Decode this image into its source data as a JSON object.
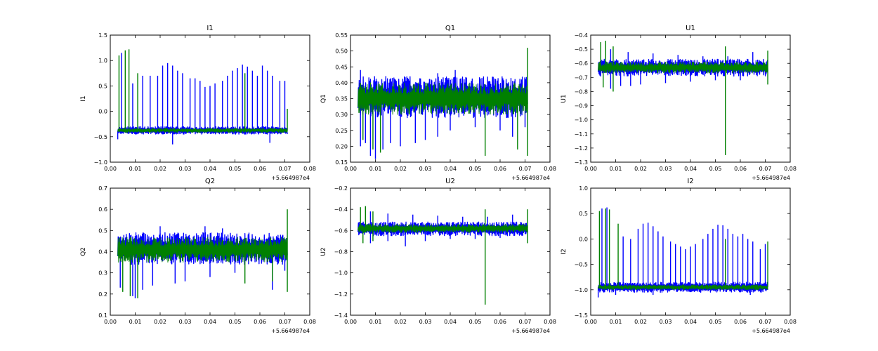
{
  "chart_data": [
    {
      "type": "line",
      "title": "I1",
      "ylabel": "I1",
      "xlabel": "",
      "xlim": [
        0.0,
        0.08
      ],
      "ylim": [
        -1.0,
        1.5
      ],
      "xticks": [
        "0.00",
        "0.01",
        "0.02",
        "0.03",
        "0.04",
        "0.05",
        "0.06",
        "0.07",
        "0.08"
      ],
      "yticks": [
        "−1.0",
        "−0.5",
        "0.0",
        "0.5",
        "1.0",
        "1.5"
      ],
      "x_offset_label": "+5.664987e4",
      "grid": false,
      "x_range_data": [
        0.003,
        0.071
      ],
      "series": [
        {
          "color": "#0000ff",
          "band": [
            -0.45,
            -0.3
          ],
          "baseline": -0.38,
          "spikes": [
            [
              0.0045,
              1.15
            ],
            [
              0.009,
              0.55
            ],
            [
              0.013,
              0.7
            ],
            [
              0.016,
              0.7
            ],
            [
              0.019,
              0.7
            ],
            [
              0.021,
              0.9
            ],
            [
              0.023,
              0.95
            ],
            [
              0.025,
              0.9
            ],
            [
              0.027,
              0.8
            ],
            [
              0.029,
              0.75
            ],
            [
              0.032,
              0.65
            ],
            [
              0.034,
              0.65
            ],
            [
              0.036,
              0.6
            ],
            [
              0.038,
              0.48
            ],
            [
              0.04,
              0.5
            ],
            [
              0.042,
              0.55
            ],
            [
              0.045,
              0.6
            ],
            [
              0.047,
              0.7
            ],
            [
              0.049,
              0.8
            ],
            [
              0.051,
              0.85
            ],
            [
              0.053,
              0.92
            ],
            [
              0.055,
              0.88
            ],
            [
              0.057,
              0.8
            ],
            [
              0.059,
              0.7
            ],
            [
              0.061,
              0.9
            ],
            [
              0.063,
              0.8
            ],
            [
              0.065,
              0.7
            ],
            [
              0.068,
              0.6
            ],
            [
              0.07,
              0.6
            ]
          ],
          "dips": [
            [
              0.003,
              -0.55
            ],
            [
              0.025,
              -0.65
            ],
            [
              0.064,
              -0.62
            ]
          ]
        },
        {
          "color": "#008000",
          "band": [
            -0.42,
            -0.33
          ],
          "baseline": -0.38,
          "spikes": [
            [
              0.0035,
              1.1
            ],
            [
              0.006,
              1.2
            ],
            [
              0.0075,
              1.22
            ],
            [
              0.011,
              0.75
            ],
            [
              0.054,
              0.75
            ],
            [
              0.071,
              0.05
            ]
          ],
          "dips": []
        }
      ]
    },
    {
      "type": "line",
      "title": "Q1",
      "ylabel": "Q1",
      "xlabel": "",
      "xlim": [
        0.0,
        0.08
      ],
      "ylim": [
        0.15,
        0.55
      ],
      "xticks": [
        "0.00",
        "0.01",
        "0.02",
        "0.03",
        "0.04",
        "0.05",
        "0.06",
        "0.07",
        "0.08"
      ],
      "yticks": [
        "0.15",
        "0.20",
        "0.25",
        "0.30",
        "0.35",
        "0.40",
        "0.45",
        "0.50",
        "0.55"
      ],
      "x_offset_label": "+5.664987e4",
      "grid": false,
      "x_range_data": [
        0.003,
        0.071
      ],
      "series": [
        {
          "color": "#0000ff",
          "band": [
            0.29,
            0.42
          ],
          "baseline": 0.36,
          "spikes": [
            [
              0.004,
              0.44
            ],
            [
              0.035,
              0.43
            ],
            [
              0.042,
              0.44
            ]
          ],
          "dips": [
            [
              0.004,
              0.2
            ],
            [
              0.006,
              0.21
            ],
            [
              0.008,
              0.17
            ],
            [
              0.01,
              0.16
            ],
            [
              0.013,
              0.19
            ],
            [
              0.016,
              0.21
            ],
            [
              0.02,
              0.2
            ],
            [
              0.026,
              0.21
            ],
            [
              0.03,
              0.22
            ],
            [
              0.035,
              0.23
            ],
            [
              0.04,
              0.25
            ],
            [
              0.05,
              0.26
            ],
            [
              0.06,
              0.25
            ],
            [
              0.065,
              0.23
            ],
            [
              0.07,
              0.26
            ]
          ]
        },
        {
          "color": "#008000",
          "band": [
            0.3,
            0.4
          ],
          "baseline": 0.35,
          "spikes": [
            [
              0.071,
              0.51
            ]
          ],
          "dips": [
            [
              0.005,
              0.22
            ],
            [
              0.009,
              0.19
            ],
            [
              0.012,
              0.18
            ],
            [
              0.054,
              0.17
            ],
            [
              0.067,
              0.19
            ],
            [
              0.071,
              0.17
            ]
          ]
        }
      ]
    },
    {
      "type": "line",
      "title": "U1",
      "ylabel": "U1",
      "xlabel": "",
      "xlim": [
        0.0,
        0.08
      ],
      "ylim": [
        -1.3,
        -0.4
      ],
      "xticks": [
        "0.00",
        "0.01",
        "0.02",
        "0.03",
        "0.04",
        "0.05",
        "0.06",
        "0.07",
        "0.08"
      ],
      "yticks": [
        "−1.3",
        "−1.2",
        "−1.1",
        "−1.0",
        "−0.9",
        "−0.8",
        "−0.7",
        "−0.6",
        "−0.5",
        "−0.4"
      ],
      "x_offset_label": "+5.664987e4",
      "grid": false,
      "x_range_data": [
        0.003,
        0.071
      ],
      "series": [
        {
          "color": "#0000ff",
          "band": [
            -0.69,
            -0.57
          ],
          "baseline": -0.63,
          "spikes": [
            [
              0.008,
              -0.5
            ],
            [
              0.015,
              -0.52
            ],
            [
              0.025,
              -0.53
            ],
            [
              0.035,
              -0.54
            ],
            [
              0.045,
              -0.55
            ],
            [
              0.055,
              -0.55
            ],
            [
              0.065,
              -0.52
            ]
          ],
          "dips": [
            [
              0.008,
              -0.78
            ],
            [
              0.012,
              -0.76
            ],
            [
              0.016,
              -0.76
            ],
            [
              0.02,
              -0.75
            ],
            [
              0.03,
              -0.74
            ],
            [
              0.04,
              -0.73
            ],
            [
              0.05,
              -0.72
            ],
            [
              0.06,
              -0.72
            ]
          ]
        },
        {
          "color": "#008000",
          "band": [
            -0.67,
            -0.59
          ],
          "baseline": -0.63,
          "spikes": [
            [
              0.004,
              -0.45
            ],
            [
              0.006,
              -0.44
            ],
            [
              0.009,
              -0.48
            ],
            [
              0.054,
              -0.48
            ],
            [
              0.071,
              -0.51
            ]
          ],
          "dips": [
            [
              0.005,
              -0.77
            ],
            [
              0.009,
              -0.8
            ],
            [
              0.054,
              -1.25
            ],
            [
              0.071,
              -0.75
            ]
          ]
        }
      ]
    },
    {
      "type": "line",
      "title": "Q2",
      "ylabel": "Q2",
      "xlabel": "",
      "xlim": [
        0.0,
        0.08
      ],
      "ylim": [
        0.1,
        0.7
      ],
      "xticks": [
        "0.00",
        "0.01",
        "0.02",
        "0.03",
        "0.04",
        "0.05",
        "0.06",
        "0.07",
        "0.08"
      ],
      "yticks": [
        "0.1",
        "0.2",
        "0.3",
        "0.4",
        "0.5",
        "0.6",
        "0.7"
      ],
      "x_offset_label": "+5.664987e4",
      "grid": false,
      "x_range_data": [
        0.003,
        0.071
      ],
      "series": [
        {
          "color": "#0000ff",
          "band": [
            0.34,
            0.49
          ],
          "baseline": 0.42,
          "spikes": [
            [
              0.02,
              0.52
            ],
            [
              0.038,
              0.52
            ],
            [
              0.045,
              0.51
            ]
          ],
          "dips": [
            [
              0.004,
              0.23
            ],
            [
              0.009,
              0.19
            ],
            [
              0.01,
              0.18
            ],
            [
              0.013,
              0.22
            ],
            [
              0.017,
              0.24
            ],
            [
              0.026,
              0.25
            ],
            [
              0.03,
              0.26
            ],
            [
              0.04,
              0.28
            ],
            [
              0.05,
              0.3
            ],
            [
              0.065,
              0.22
            ],
            [
              0.07,
              0.31
            ]
          ]
        },
        {
          "color": "#008000",
          "band": [
            0.35,
            0.47
          ],
          "baseline": 0.41,
          "spikes": [
            [
              0.071,
              0.6
            ]
          ],
          "dips": [
            [
              0.005,
              0.21
            ],
            [
              0.008,
              0.19
            ],
            [
              0.011,
              0.18
            ],
            [
              0.054,
              0.25
            ],
            [
              0.065,
              0.26
            ],
            [
              0.071,
              0.21
            ]
          ]
        }
      ]
    },
    {
      "type": "line",
      "title": "U2",
      "ylabel": "U2",
      "xlabel": "",
      "xlim": [
        0.0,
        0.08
      ],
      "ylim": [
        -1.4,
        -0.2
      ],
      "xticks": [
        "0.00",
        "0.01",
        "0.02",
        "0.03",
        "0.04",
        "0.05",
        "0.06",
        "0.07",
        "0.08"
      ],
      "yticks": [
        "−1.4",
        "−1.2",
        "−1.0",
        "−0.8",
        "−0.6",
        "−0.4",
        "−0.2"
      ],
      "x_offset_label": "+5.664987e4",
      "grid": false,
      "x_range_data": [
        0.003,
        0.071
      ],
      "series": [
        {
          "color": "#0000ff",
          "band": [
            -0.65,
            -0.52
          ],
          "baseline": -0.58,
          "spikes": [
            [
              0.008,
              -0.42
            ],
            [
              0.015,
              -0.44
            ],
            [
              0.025,
              -0.45
            ],
            [
              0.035,
              -0.46
            ],
            [
              0.045,
              -0.47
            ],
            [
              0.055,
              -0.47
            ],
            [
              0.065,
              -0.45
            ]
          ],
          "dips": [
            [
              0.008,
              -0.72
            ],
            [
              0.015,
              -0.7
            ],
            [
              0.022,
              -0.75
            ],
            [
              0.03,
              -0.7
            ],
            [
              0.04,
              -0.68
            ],
            [
              0.05,
              -0.68
            ],
            [
              0.06,
              -0.67
            ]
          ]
        },
        {
          "color": "#008000",
          "band": [
            -0.62,
            -0.54
          ],
          "baseline": -0.58,
          "spikes": [
            [
              0.004,
              -0.38
            ],
            [
              0.006,
              -0.37
            ],
            [
              0.009,
              -0.42
            ],
            [
              0.054,
              -0.4
            ],
            [
              0.071,
              -0.4
            ]
          ],
          "dips": [
            [
              0.005,
              -0.72
            ],
            [
              0.009,
              -0.7
            ],
            [
              0.054,
              -1.3
            ],
            [
              0.071,
              -0.72
            ]
          ]
        }
      ]
    },
    {
      "type": "line",
      "title": "I2",
      "ylabel": "I2",
      "xlabel": "",
      "xlim": [
        0.0,
        0.08
      ],
      "ylim": [
        -1.5,
        1.0
      ],
      "xticks": [
        "0.00",
        "0.01",
        "0.02",
        "0.03",
        "0.04",
        "0.05",
        "0.06",
        "0.07",
        "0.08"
      ],
      "yticks": [
        "−1.5",
        "−1.0",
        "−0.5",
        "0.0",
        "0.5",
        "1.0"
      ],
      "x_offset_label": "+5.664987e4",
      "grid": false,
      "x_range_data": [
        0.003,
        0.071
      ],
      "series": [
        {
          "color": "#0000ff",
          "band": [
            -1.05,
            -0.85
          ],
          "baseline": -0.95,
          "spikes": [
            [
              0.0045,
              0.6
            ],
            [
              0.0065,
              0.62
            ],
            [
              0.013,
              0.05
            ],
            [
              0.016,
              0.0
            ],
            [
              0.019,
              0.2
            ],
            [
              0.021,
              0.3
            ],
            [
              0.023,
              0.32
            ],
            [
              0.025,
              0.25
            ],
            [
              0.027,
              0.15
            ],
            [
              0.029,
              0.05
            ],
            [
              0.032,
              -0.05
            ],
            [
              0.034,
              -0.1
            ],
            [
              0.036,
              -0.15
            ],
            [
              0.038,
              -0.2
            ],
            [
              0.04,
              -0.15
            ],
            [
              0.042,
              -0.1
            ],
            [
              0.045,
              0.0
            ],
            [
              0.047,
              0.1
            ],
            [
              0.049,
              0.2
            ],
            [
              0.051,
              0.28
            ],
            [
              0.053,
              0.27
            ],
            [
              0.055,
              0.2
            ],
            [
              0.057,
              0.1
            ],
            [
              0.059,
              0.05
            ],
            [
              0.061,
              0.1
            ],
            [
              0.063,
              0.0
            ],
            [
              0.065,
              -0.05
            ],
            [
              0.068,
              -0.2
            ],
            [
              0.07,
              -0.1
            ]
          ],
          "dips": [
            [
              0.003,
              -1.15
            ],
            [
              0.01,
              -1.1
            ],
            [
              0.025,
              -1.1
            ],
            [
              0.064,
              -1.1
            ]
          ]
        },
        {
          "color": "#008000",
          "band": [
            -1.0,
            -0.9
          ],
          "baseline": -0.95,
          "spikes": [
            [
              0.0035,
              0.55
            ],
            [
              0.006,
              0.6
            ],
            [
              0.0075,
              0.58
            ],
            [
              0.011,
              0.3
            ],
            [
              0.054,
              0.0
            ],
            [
              0.071,
              -0.05
            ]
          ],
          "dips": []
        }
      ]
    }
  ]
}
